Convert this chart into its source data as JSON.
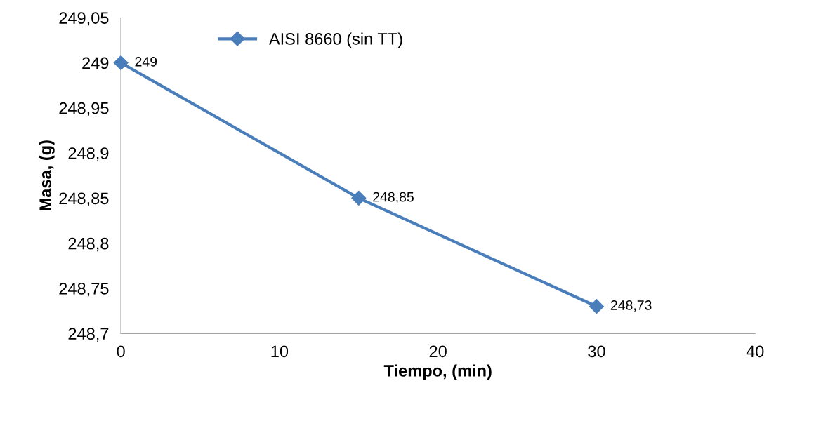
{
  "chart_data": {
    "type": "line",
    "xlabel": "Tiempo, (min)",
    "ylabel": "Masa, (g)",
    "x": [
      0,
      15,
      30
    ],
    "series": [
      {
        "name": "AISI 8660 (sin TT)",
        "color": "#4a7ebb",
        "values": [
          249,
          248.85,
          248.73
        ],
        "value_labels": [
          "249",
          "248,85",
          "248,73"
        ]
      }
    ],
    "xlim": [
      0,
      40
    ],
    "xticks": [
      0,
      10,
      20,
      30,
      40
    ],
    "ylim": [
      248.7,
      249.05
    ],
    "yticks": [
      {
        "value": 248.7,
        "label": "248,7"
      },
      {
        "value": 248.75,
        "label": "248,75"
      },
      {
        "value": 248.8,
        "label": "248,8"
      },
      {
        "value": 248.85,
        "label": "248,85"
      },
      {
        "value": 248.9,
        "label": "248,9"
      },
      {
        "value": 248.95,
        "label": "248,95"
      },
      {
        "value": 249,
        "label": "249"
      },
      {
        "value": 249.05,
        "label": "249,05"
      }
    ],
    "grid": false,
    "legend": "top",
    "marker": "diamond",
    "line_style": "solid"
  }
}
